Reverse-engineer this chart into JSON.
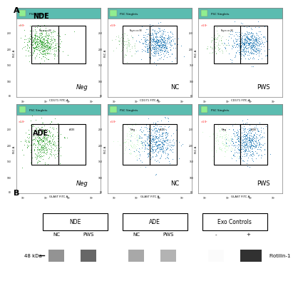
{
  "panel_A_label": "A",
  "panel_B_label": "B",
  "NDE_label": "NDE",
  "ADE_label": "ADE",
  "row1_labels": [
    "Neg",
    "NC",
    "PWS"
  ],
  "row2_labels": [
    "Neg",
    "NC",
    "PWS"
  ],
  "xlabel_NDE": "CD171 FITC-A",
  "xlabel_ADE": "GLAST FITC-A",
  "ylabel": "FSC-A",
  "header_label": "FSC Singlets",
  "header_color": "#5bbcb0",
  "wb_group_labels": [
    "NDE",
    "ADE",
    "Exo Controls"
  ],
  "wb_col_labels": [
    "NC",
    "PWS",
    "NC",
    "PWS",
    "-",
    "+"
  ],
  "wb_size_label": "48 kDa",
  "wb_protein": "Flotilin-1",
  "background_color": "#ffffff"
}
